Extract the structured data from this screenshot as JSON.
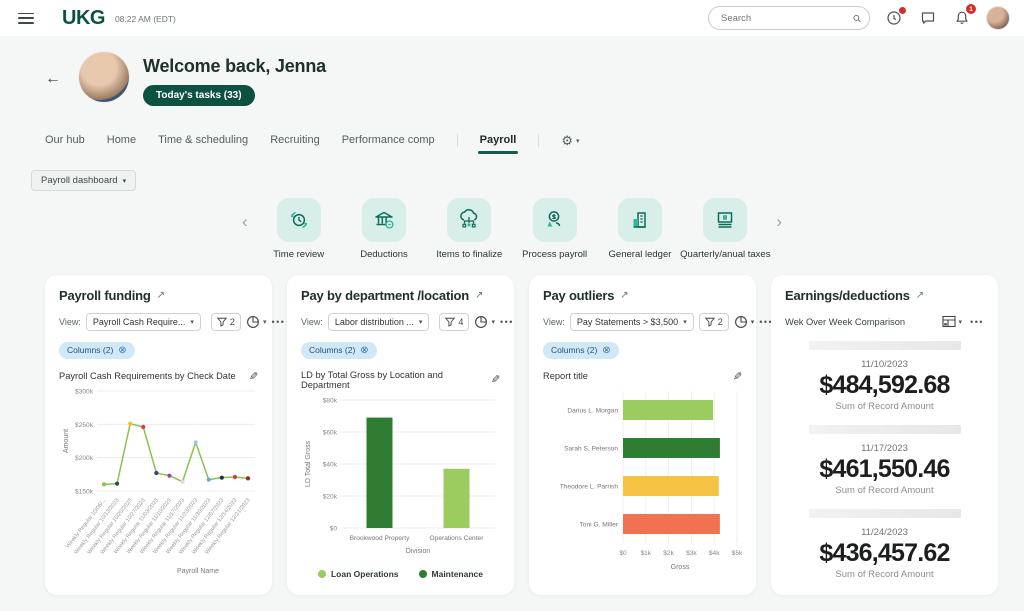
{
  "theme": {
    "brand_green": "#0d5240",
    "tab_underline": "#135c4b",
    "tile_bg": "#d8efe9",
    "tile_icon": "#0d6b57",
    "chip_bg": "#d2e8f6",
    "chip_text": "#23527c",
    "badge_red": "#d32f2f"
  },
  "icons": {
    "external": "↗",
    "caret": "▾",
    "kebab": "•••",
    "back": "←",
    "chevron_left": "‹",
    "chevron_right": "›",
    "gear": "⚙",
    "pencil": "✎",
    "chip_x": "⊗"
  },
  "topbar": {
    "brand": "UKG",
    "time": "08:22 AM (EDT)",
    "search_placeholder": "Search",
    "bell_badge": "1"
  },
  "welcome": {
    "title": "Welcome back, Jenna",
    "tasks_button": "Today's tasks (33)"
  },
  "nav": {
    "tabs": [
      {
        "label": "Our hub"
      },
      {
        "label": "Home"
      },
      {
        "label": "Time & scheduling"
      },
      {
        "label": "Recruiting"
      },
      {
        "label": "Performance comp"
      },
      {
        "label": "Payroll",
        "active": true
      }
    ]
  },
  "dashboard_selector": {
    "label": "Payroll dashboard"
  },
  "carousel": {
    "items": [
      {
        "label": "Time review"
      },
      {
        "label": "Deductions"
      },
      {
        "label": "Items to finalize"
      },
      {
        "label": "Process payroll"
      },
      {
        "label": "General ledger"
      },
      {
        "label": "Quarterly/anual taxes"
      }
    ]
  },
  "cards": {
    "payroll_funding": {
      "title": "Payroll funding",
      "view_label": "View:",
      "view_value": "Payroll Cash Require...",
      "filter_count": "2",
      "chip": "Columns (2)",
      "chart_title": "Payroll Cash Requirements by Check Date"
    },
    "pay_by_department": {
      "title": "Pay by department /location",
      "view_label": "View:",
      "view_value": "Labor distribution ...",
      "filter_count": "4",
      "chip": "Columns (2)",
      "chart_title": "LD by Total Gross by Location and Department"
    },
    "pay_outliers": {
      "title": "Pay outliers",
      "view_label": "View:",
      "view_value": "Pay Statements > $3,500",
      "filter_count": "2",
      "chip": "Columns (2)",
      "chart_title": "Report title"
    },
    "earnings_deductions": {
      "title": "Earnings/deductions",
      "subtitle": "Wek Over Week Comparison",
      "stats": [
        {
          "date": "11/10/2023",
          "amount": "$484,592.68",
          "caption": "Sum of Record Amount"
        },
        {
          "date": "11/17/2023",
          "amount": "$461,550.46",
          "caption": "Sum of Record Amount"
        },
        {
          "date": "11/24/2023",
          "amount": "$436,457.62",
          "caption": "Sum of Record Amount"
        }
      ]
    }
  },
  "chart_data": [
    {
      "type": "line",
      "title": "Payroll Cash Requirements by Check Date",
      "xlabel": "Payroll Name",
      "ylabel": "Amount",
      "ylim": [
        150000,
        300000
      ],
      "yticks": [
        "$150k",
        "$200k",
        "$250k",
        "$300k"
      ],
      "grid": true,
      "categories": [
        "Weekly Regular 10/06/...",
        "Weekly Regular 10/13/2023",
        "Weekly Regular 10/20/2023",
        "Weekly Regular 10/27/2023",
        "Weekly Regular 11/03/2023",
        "Weekly Regular 11/10/2023",
        "Weekly Regular 11/17/2023",
        "Weekly Regular 11/23/2023",
        "Weekly Regular 11/30/2023",
        "Weekly Regular 12/07/2023",
        "Weekly Regular 12/14/2023",
        "Weekly Regular 12/21/2023"
      ],
      "values": [
        160000,
        161000,
        251000,
        246000,
        177000,
        173000,
        164000,
        223000,
        167000,
        170000,
        171000,
        169000
      ],
      "line_color": "#8cc152",
      "point_colors": [
        "#8bc34a",
        "#37474f",
        "#f2c037",
        "#e0393a",
        "#453a7c",
        "#a0449a",
        "#d9d9d9",
        "#9ec7ef",
        "#53b1e0",
        "#263238",
        "#d23a4e",
        "#8d2b24"
      ]
    },
    {
      "type": "bar",
      "title": "LD by Total Gross by Location and Department",
      "xlabel": "Division",
      "ylabel": "LD Total Gross",
      "ylim": [
        0,
        80000
      ],
      "yticks": [
        "$0",
        "$20k",
        "$40k",
        "$60k",
        "$80k"
      ],
      "grid": true,
      "categories": [
        "Brookwood Property",
        "Operations Center"
      ],
      "values": [
        69000,
        37000
      ],
      "bar_colors": [
        "#2e7d32",
        "#9ccb5f"
      ],
      "legend_position": "bottom",
      "legend": [
        {
          "label": "Loan Operations",
          "color": "#9ccb5f"
        },
        {
          "label": "Maintenance",
          "color": "#2e7d32"
        }
      ]
    },
    {
      "type": "hbar",
      "title": "Report title",
      "xlabel": "Gross",
      "xlim": [
        0,
        5000
      ],
      "xticks": [
        "$0",
        "$1k",
        "$2k",
        "$3k",
        "$4k",
        "$5k"
      ],
      "grid": true,
      "categories": [
        "Darius L. Morgan",
        "Sarah S. Peterson",
        "Theodore L. Parrish",
        "Toni G. Miller"
      ],
      "values": [
        3950,
        4250,
        4200,
        4250
      ],
      "bar_colors": [
        "#9ccb5f",
        "#2e7d32",
        "#f6c244",
        "#f07250"
      ]
    }
  ]
}
